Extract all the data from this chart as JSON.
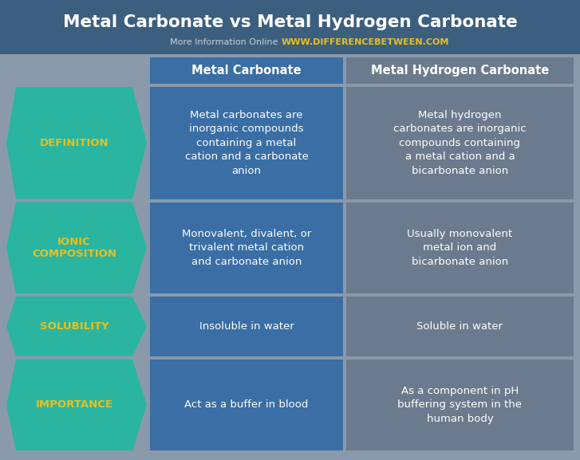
{
  "title": "Metal Carbonate vs Metal Hydrogen Carbonate",
  "subtitle_gray": "More Information Online",
  "subtitle_url": "WWW.DIFFERENCEBETWEEN.COM",
  "col1_header": "Metal Carbonate",
  "col2_header": "Metal Hydrogen Carbonate",
  "bg_color": "#8a9aaa",
  "header_bg": "#3c5f80",
  "col1_bg": "#3a6ea5",
  "col2_bg": "#6b7b8d",
  "arrow_color": "#2ab5a0",
  "title_color": "#ffffff",
  "header_text_color": "#ffffff",
  "cell_text_color": "#ffffff",
  "arrow_text_color": "#e8c020",
  "subtitle_gray_color": "#c8d0d8",
  "subtitle_url_color": "#e8c020",
  "fig_w": 7.27,
  "fig_h": 5.77,
  "dpi": 100,
  "rows": [
    {
      "label": "DEFINITION",
      "col1": "Metal carbonates are\ninorganic compounds\ncontaining a metal\ncation and a carbonate\nanion",
      "col2": "Metal hydrogen\ncarbonates are inorganic\ncompounds containing\na metal cation and a\nbicarbonate anion"
    },
    {
      "label": "IONIC\nCOMPOSITION",
      "col1": "Monovalent, divalent, or\ntrivalent metal cation\nand carbonate anion",
      "col2": "Usually monovalent\nmetal ion and\nbicarbonate anion"
    },
    {
      "label": "SOLUBILITY",
      "col1": "Insoluble in water",
      "col2": "Soluble in water"
    },
    {
      "label": "IMPORTANCE",
      "col1": "Act as a buffer in blood",
      "col2": "As a component in pH\nbuffering system in the\nhuman body"
    }
  ]
}
